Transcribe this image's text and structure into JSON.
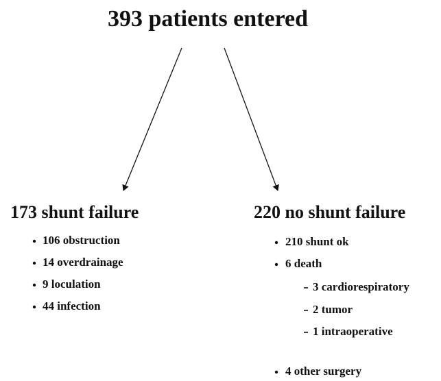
{
  "title": "393 patients entered",
  "branches": [
    {
      "heading": "173 shunt failure",
      "items": [
        {
          "text": "106 obstruction"
        },
        {
          "text": "14 overdrainage"
        },
        {
          "text": "9 loculation"
        },
        {
          "text": "44 infection"
        }
      ]
    },
    {
      "heading": "220 no shunt failure",
      "items": [
        {
          "text": "210 shunt ok"
        },
        {
          "text": "6 death",
          "subitems": [
            "3 cardiorespiratory",
            "2 tumor",
            "1 intraoperative"
          ]
        },
        {
          "text": "4 other surgery"
        }
      ]
    }
  ]
}
